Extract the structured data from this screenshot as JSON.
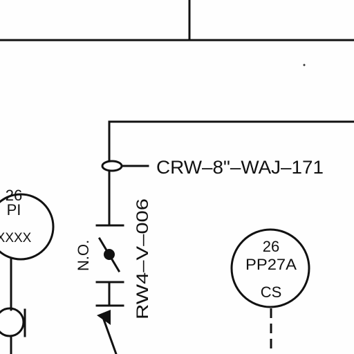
{
  "pipe_line": {
    "label": "CRW–8\"–WAJ–171"
  },
  "valve": {
    "tag": "RW4–V–006",
    "state": "N.O."
  },
  "instrument_left": {
    "line1": "26",
    "line2": "PI",
    "line3": "XXXX"
  },
  "instrument_right": {
    "line1": "26",
    "line2": "PP27A",
    "line3": "CS"
  }
}
